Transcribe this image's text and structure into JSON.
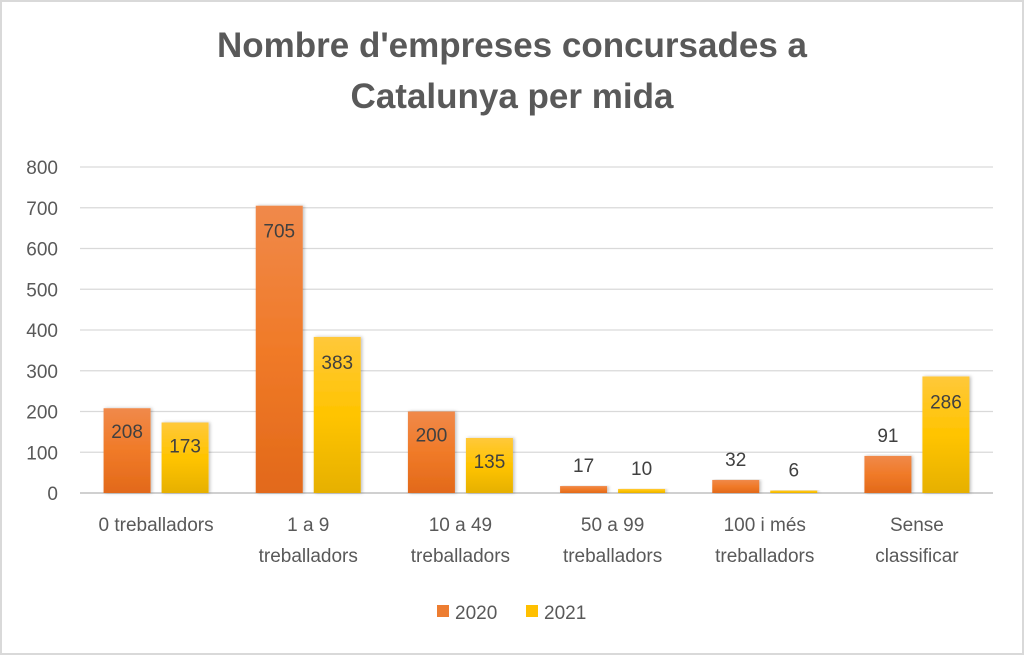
{
  "chart_data": {
    "type": "bar",
    "title": [
      "Nombre d'empreses concursades a",
      "Catalunya per mida"
    ],
    "xlabel": "",
    "ylabel": "",
    "ylim": [
      0,
      800
    ],
    "yticks": [
      0,
      100,
      200,
      300,
      400,
      500,
      600,
      700,
      800
    ],
    "grid": true,
    "legend_position": "bottom",
    "categories": [
      [
        "0 treballadors"
      ],
      [
        "1 a 9",
        "treballadors"
      ],
      [
        "10 a 49",
        "treballadors"
      ],
      [
        "50 a 99",
        "treballadors"
      ],
      [
        "100 i més",
        "treballadors"
      ],
      [
        "Sense",
        "classificar"
      ]
    ],
    "series": [
      {
        "name": "2020",
        "color": "#ED7D31",
        "values": [
          208,
          705,
          200,
          17,
          32,
          91
        ]
      },
      {
        "name": "2021",
        "color": "#FFC000",
        "values": [
          173,
          383,
          135,
          10,
          6,
          286
        ]
      }
    ]
  }
}
